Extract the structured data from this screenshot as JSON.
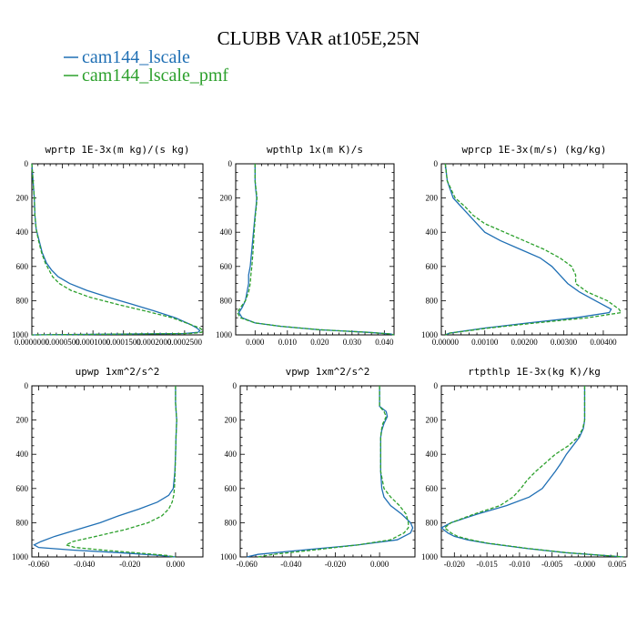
{
  "title": "CLUBB VAR at105E,25N",
  "colors": {
    "cam144_lscale": "#1f6fb4",
    "cam144_lscale_pmf": "#2ca02c"
  },
  "chart_data": [
    {
      "type": "line",
      "title": "wprtp  1E-3x(m kg)/(s kg)",
      "xlim": [
        0.0,
        0.00028
      ],
      "ylim": [
        1000,
        0
      ],
      "xticks": [
        "0.0000000",
        "0.0000500",
        "0.0001000",
        "0.0001500",
        "0.0002000",
        "0.0002500"
      ],
      "xtick_values": [
        0.0,
        5e-05,
        0.0001,
        0.00015,
        0.0002,
        0.00025
      ],
      "yticks": [
        "0",
        "200",
        "400",
        "600",
        "800",
        "1000"
      ],
      "y": [
        0,
        100,
        200,
        300,
        380,
        450,
        520,
        580,
        620,
        660,
        700,
        740,
        780,
        820,
        860,
        900,
        940,
        960,
        975,
        985,
        992,
        1000
      ],
      "series": [
        {
          "name": "cam144_lscale",
          "style": "solid",
          "values": [
            0.0,
            2e-06,
            4e-06,
            5e-06,
            7e-06,
            1.2e-05,
            1.7e-05,
            2.4e-05,
            3.2e-05,
            4.3e-05,
            6.2e-05,
            9e-05,
            0.000125,
            0.000163,
            0.0002,
            0.000235,
            0.00026,
            0.00027,
            0.000275,
            0.000272,
            0.00025,
            0.0
          ]
        },
        {
          "name": "cam144_lscale_pmf",
          "style": "dashed",
          "values": [
            0.0,
            2e-06,
            4e-06,
            5e-06,
            7e-06,
            1.1e-05,
            1.6e-05,
            2.2e-05,
            2.8e-05,
            3.4e-05,
            4.5e-05,
            6.4e-05,
            9.5e-05,
            0.000138,
            0.000185,
            0.00023,
            0.00026,
            0.000275,
            0.00028,
            0.000278,
            0.00026,
            0.0
          ]
        }
      ]
    },
    {
      "type": "line",
      "title": "wpthlp  1x(m K)/s",
      "xlim": [
        -0.006,
        0.043
      ],
      "ylim": [
        1000,
        0
      ],
      "xticks": [
        "0.000",
        "0.010",
        "0.020",
        "0.030",
        "0.040"
      ],
      "xtick_values": [
        0.0,
        0.01,
        0.02,
        0.03,
        0.04
      ],
      "yticks": [
        "0",
        "200",
        "400",
        "600",
        "800",
        "1000"
      ],
      "y": [
        0,
        100,
        150,
        200,
        250,
        300,
        400,
        500,
        600,
        650,
        700,
        750,
        800,
        840,
        870,
        900,
        930,
        950,
        970,
        985,
        995,
        1000
      ],
      "series": [
        {
          "name": "cam144_lscale",
          "style": "solid",
          "values": [
            0.0,
            0.0,
            0.0002,
            0.0005,
            0.0003,
            0.0,
            -0.0005,
            -0.001,
            -0.0015,
            -0.002,
            -0.002,
            -0.0025,
            -0.003,
            -0.004,
            -0.005,
            -0.004,
            0.0,
            0.008,
            0.02,
            0.035,
            0.042,
            0.043
          ]
        },
        {
          "name": "cam144_lscale_pmf",
          "style": "dashed",
          "values": [
            0.0,
            0.0,
            0.0003,
            0.0006,
            0.0004,
            0.0001,
            -0.0003,
            -0.0006,
            -0.001,
            -0.0013,
            -0.0015,
            -0.002,
            -0.003,
            -0.0045,
            -0.0055,
            -0.0045,
            0.0,
            0.008,
            0.02,
            0.035,
            0.042,
            0.043
          ]
        }
      ]
    },
    {
      "type": "line",
      "title": "wprcp  1E-3x(m/s) (kg/kg)",
      "xlim": [
        -0.0001,
        0.0046
      ],
      "ylim": [
        1000,
        0
      ],
      "xticks": [
        "0.00000",
        "0.00100",
        "0.00200",
        "0.00300",
        "0.00400"
      ],
      "xtick_values": [
        0.0,
        0.001,
        0.002,
        0.003,
        0.004
      ],
      "yticks": [
        "0",
        "200",
        "400",
        "600",
        "800",
        "1000"
      ],
      "y": [
        0,
        100,
        200,
        250,
        300,
        350,
        400,
        450,
        500,
        550,
        600,
        650,
        700,
        750,
        800,
        850,
        870,
        900,
        930,
        960,
        990,
        1000
      ],
      "series": [
        {
          "name": "cam144_lscale",
          "style": "solid",
          "values": [
            0.0,
            5e-05,
            0.0002,
            0.0004,
            0.0006,
            0.0008,
            0.001,
            0.0014,
            0.0019,
            0.0024,
            0.0027,
            0.0029,
            0.0031,
            0.0034,
            0.0038,
            0.0042,
            0.00415,
            0.0033,
            0.0021,
            0.001,
            0.0001,
            0.0
          ]
        },
        {
          "name": "cam144_lscale_pmf",
          "style": "dashed",
          "values": [
            0.0,
            5e-05,
            0.00025,
            0.0005,
            0.0007,
            0.001,
            0.0015,
            0.002,
            0.0025,
            0.0029,
            0.0032,
            0.0033,
            0.0033,
            0.0036,
            0.0041,
            0.0044,
            0.00445,
            0.0036,
            0.0023,
            0.0011,
            0.0001,
            0.0
          ]
        }
      ]
    },
    {
      "type": "line",
      "title": "upwp  1xm^2/s^2",
      "xlim": [
        -0.063,
        0.012
      ],
      "ylim": [
        1000,
        0
      ],
      "xticks": [
        "-0.060",
        "-0.040",
        "-0.020",
        "0.000"
      ],
      "xtick_values": [
        -0.06,
        -0.04,
        -0.02,
        0.0
      ],
      "yticks": [
        "0",
        "200",
        "400",
        "600",
        "800",
        "1000"
      ],
      "y": [
        0,
        100,
        200,
        300,
        400,
        500,
        600,
        640,
        680,
        720,
        760,
        800,
        840,
        880,
        910,
        930,
        945,
        960,
        975,
        990,
        1000
      ],
      "series": [
        {
          "name": "cam144_lscale",
          "style": "solid",
          "values": [
            0.0,
            0.0,
            0.0005,
            0.0002,
            0.0,
            -0.0003,
            -0.001,
            -0.003,
            -0.008,
            -0.016,
            -0.025,
            -0.033,
            -0.043,
            -0.053,
            -0.059,
            -0.062,
            -0.06,
            -0.045,
            -0.025,
            -0.008,
            0.0
          ]
        },
        {
          "name": "cam144_lscale_pmf",
          "style": "dashed",
          "values": [
            0.0,
            0.0,
            0.0005,
            0.0002,
            0.0,
            -0.0002,
            -0.0005,
            -0.0008,
            -0.0015,
            -0.003,
            -0.006,
            -0.012,
            -0.022,
            -0.035,
            -0.045,
            -0.048,
            -0.044,
            -0.032,
            -0.018,
            -0.005,
            0.0
          ]
        }
      ]
    },
    {
      "type": "line",
      "title": "vpwp  1xm^2/s^2",
      "xlim": [
        -0.063,
        0.016
      ],
      "ylim": [
        1000,
        0
      ],
      "xticks": [
        "-0.060",
        "-0.040",
        "-0.020",
        "0.000"
      ],
      "xtick_values": [
        -0.06,
        -0.04,
        -0.02,
        0.0
      ],
      "yticks": [
        "0",
        "200",
        "400",
        "600",
        "800",
        "1000"
      ],
      "y": [
        0,
        80,
        120,
        150,
        180,
        220,
        260,
        300,
        400,
        500,
        600,
        650,
        700,
        750,
        800,
        830,
        860,
        900,
        930,
        960,
        985,
        1000
      ],
      "series": [
        {
          "name": "cam144_lscale",
          "style": "solid",
          "values": [
            0.0,
            0.0,
            0.0,
            0.003,
            0.0035,
            0.002,
            0.001,
            0.0005,
            0.0005,
            0.0005,
            0.001,
            0.002,
            0.005,
            0.01,
            0.014,
            0.015,
            0.014,
            0.008,
            -0.01,
            -0.035,
            -0.055,
            -0.06
          ]
        },
        {
          "name": "cam144_lscale_pmf",
          "style": "dashed",
          "values": [
            0.0,
            0.0,
            0.0,
            0.002,
            0.003,
            0.0015,
            0.0008,
            0.0005,
            0.0005,
            0.0005,
            0.002,
            0.005,
            0.009,
            0.012,
            0.013,
            0.013,
            0.011,
            0.005,
            -0.01,
            -0.03,
            -0.048,
            -0.055
          ]
        }
      ]
    },
    {
      "type": "line",
      "title": "rtpthlp  1E-3x(kg K)/kg",
      "xlim": [
        -0.022,
        0.0065
      ],
      "ylim": [
        1000,
        0
      ],
      "xticks": [
        "-0.020",
        "-0.015",
        "-0.010",
        "-0.005",
        "-0.000",
        "0.005"
      ],
      "xtick_values": [
        -0.02,
        -0.015,
        -0.01,
        -0.005,
        0.0,
        0.005
      ],
      "yticks": [
        "0",
        "200",
        "400",
        "600",
        "800",
        "1000"
      ],
      "y": [
        0,
        100,
        200,
        250,
        300,
        350,
        400,
        450,
        500,
        550,
        600,
        650,
        700,
        750,
        800,
        830,
        860,
        880,
        900,
        920,
        950,
        975,
        1000
      ],
      "series": [
        {
          "name": "cam144_lscale",
          "style": "solid",
          "values": [
            0.0,
            0.0,
            0.0,
            -0.0002,
            -0.0008,
            -0.0018,
            -0.0028,
            -0.0036,
            -0.0045,
            -0.0055,
            -0.0065,
            -0.0085,
            -0.012,
            -0.0165,
            -0.0205,
            -0.022,
            -0.021,
            -0.02,
            -0.018,
            -0.015,
            -0.009,
            -0.003,
            0.006
          ]
        },
        {
          "name": "cam144_lscale_pmf",
          "style": "dashed",
          "values": [
            0.0,
            0.0,
            0.0,
            -0.0003,
            -0.001,
            -0.0025,
            -0.0045,
            -0.006,
            -0.0075,
            -0.0088,
            -0.0098,
            -0.011,
            -0.013,
            -0.017,
            -0.0205,
            -0.0215,
            -0.0205,
            -0.0195,
            -0.0175,
            -0.0148,
            -0.0088,
            -0.0028,
            0.006
          ]
        }
      ]
    }
  ]
}
